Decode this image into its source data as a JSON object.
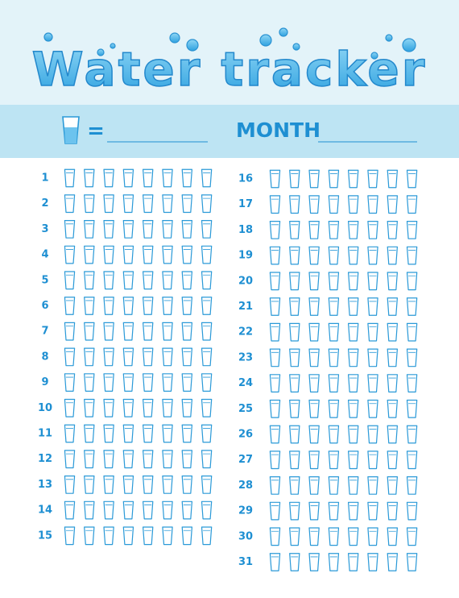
{
  "header": {
    "title": "Water tracker",
    "equals": "=",
    "month_label": "MONTH"
  },
  "days": [
    1,
    2,
    3,
    4,
    5,
    6,
    7,
    8,
    9,
    10,
    11,
    12,
    13,
    14,
    15,
    16,
    17,
    18,
    19,
    20,
    21,
    22,
    23,
    24,
    25,
    26,
    27,
    28,
    29,
    30,
    31
  ]
}
